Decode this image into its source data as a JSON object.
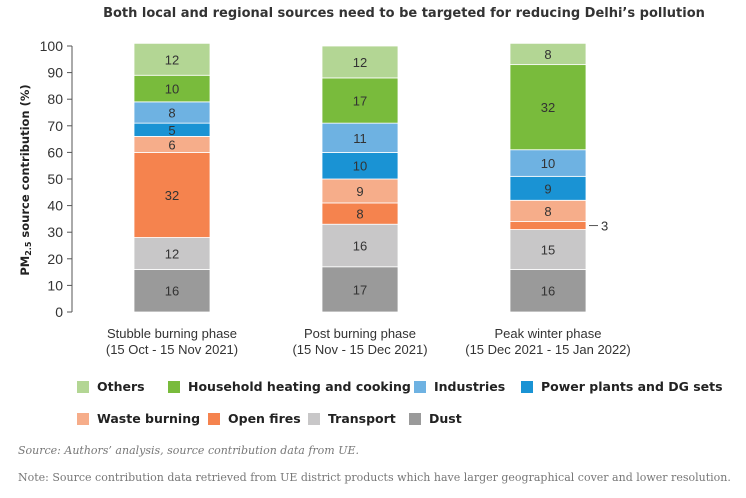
{
  "chart_data": {
    "type": "bar",
    "stacked": true,
    "title": "Both local and regional sources need to be targeted for reducing Delhi’s pollution",
    "ylabel": "PM2.5 source contribution (%)",
    "xlabel": "",
    "ylim": [
      0,
      100
    ],
    "yticks": [
      0,
      10,
      20,
      30,
      40,
      50,
      60,
      70,
      80,
      90,
      100
    ],
    "categories": [
      {
        "line1": "Stubble burning phase",
        "line2": "(15 Oct - 15 Nov 2021)"
      },
      {
        "line1": "Post burning phase",
        "line2": "(15 Nov - 15 Dec 2021)"
      },
      {
        "line1": "Peak winter phase",
        "line2": "(15 Dec 2021 - 15 Jan 2022)"
      }
    ],
    "series": [
      {
        "name": "Dust",
        "color": "#9a9a9a",
        "values": [
          16,
          17,
          16
        ]
      },
      {
        "name": "Transport",
        "color": "#c8c7c8",
        "values": [
          12,
          16,
          15
        ]
      },
      {
        "name": "Open fires",
        "color": "#f5834e",
        "values": [
          32,
          8,
          3
        ]
      },
      {
        "name": "Waste burning",
        "color": "#f6ad8a",
        "values": [
          6,
          9,
          8
        ]
      },
      {
        "name": "Power plants and DG sets",
        "color": "#1a93d4",
        "values": [
          5,
          10,
          9
        ]
      },
      {
        "name": "Industries",
        "color": "#6eb2e2",
        "values": [
          8,
          11,
          10
        ]
      },
      {
        "name": "Household heating and cooking",
        "color": "#79bb3c",
        "values": [
          10,
          17,
          32
        ]
      },
      {
        "name": "Others",
        "color": "#b3d694",
        "values": [
          12,
          12,
          8
        ]
      }
    ],
    "legend": {
      "placement": "bottom",
      "order": [
        "Others",
        "Household heating and cooking",
        "Industries",
        "Power plants and DG sets",
        "Waste burning",
        "Open fires",
        "Transport",
        "Dust"
      ]
    }
  },
  "source": "Source: Authors’ analysis, source contribution data from UE.",
  "note": "Note: Source contribution data retrieved from UE district products which have larger geographical cover and lower resolution."
}
